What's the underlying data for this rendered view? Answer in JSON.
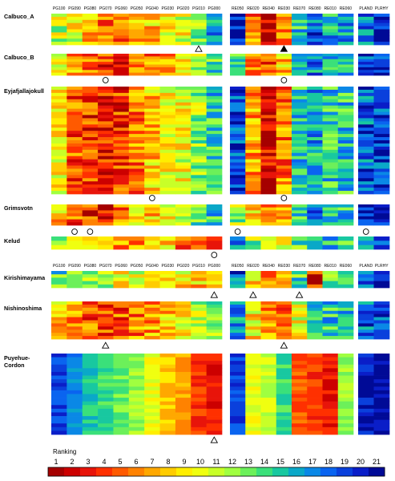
{
  "chart_data": {
    "type": "heatmap",
    "column_groups": [
      {
        "name": "PG",
        "columns": [
          "PG100",
          "PG090",
          "PG080",
          "PG070",
          "PG060",
          "PG050",
          "PG040",
          "PG030",
          "PG020",
          "PG010",
          "PG000"
        ]
      },
      {
        "name": "RE",
        "columns": [
          "RE050",
          "RE020",
          "RE040",
          "RE030",
          "RE070",
          "RE080",
          "RE010",
          "RE060"
        ]
      },
      {
        "name": "PL",
        "columns": [
          "PLAND",
          "PLRHY"
        ]
      }
    ],
    "header_rows": [
      "top",
      "middle"
    ],
    "rows": [
      {
        "label": "Calbuco_A",
        "label_lines": [
          "Calbuco_A"
        ],
        "n_rows": 10,
        "profile": [
          11,
          10,
          8,
          6,
          5,
          7,
          8,
          9,
          10,
          13,
          16,
          21,
          6,
          1,
          6,
          15,
          18,
          16,
          16,
          17,
          19
        ],
        "markers": [
          {
            "col": 9,
            "shape": "triangle-open"
          },
          {
            "col": 14,
            "shape": "triangle-filled"
          }
        ]
      },
      {
        "label": "Calbuco_B",
        "label_lines": [
          "Calbuco_B"
        ],
        "n_rows": 8,
        "profile": [
          10,
          7,
          5,
          4,
          3,
          5,
          6,
          7,
          9,
          12,
          14,
          14,
          6,
          4,
          8,
          15,
          17,
          16,
          15,
          18,
          19
        ],
        "markers": [
          {
            "col": 3,
            "shape": "circle"
          },
          {
            "col": 14,
            "shape": "circle"
          }
        ]
      },
      {
        "label": "Eyjafjallajokull",
        "label_lines": [
          "Eyjafjallajokull"
        ],
        "n_rows": 34,
        "profile": [
          9,
          5,
          4,
          3,
          4,
          6,
          8,
          9,
          10,
          12,
          15,
          19,
          7,
          2,
          6,
          15,
          16,
          15,
          15,
          18,
          19
        ],
        "markers": [
          {
            "col": 6,
            "shape": "circle"
          },
          {
            "col": 14,
            "shape": "circle"
          }
        ]
      },
      {
        "label": "Grimsvotn",
        "label_lines": [
          "Grimsvotn"
        ],
        "n_rows": 7,
        "profile": [
          8,
          5,
          4,
          3,
          6,
          8,
          8,
          10,
          11,
          13,
          15,
          12,
          8,
          5,
          7,
          14,
          17,
          16,
          15,
          19,
          20
        ],
        "markers": [
          {
            "col": 1,
            "shape": "circle"
          },
          {
            "col": 2,
            "shape": "circle"
          },
          {
            "col": 11,
            "shape": "circle"
          },
          {
            "col": 19,
            "shape": "circle"
          }
        ]
      },
      {
        "label": "Kelud",
        "label_lines": [
          "Kelud"
        ],
        "n_rows": 3,
        "profile": [
          12,
          10,
          9,
          8,
          7,
          7,
          8,
          9,
          6,
          4,
          2,
          17,
          12,
          10,
          9,
          13,
          16,
          15,
          14,
          18,
          20
        ],
        "markers": [
          {
            "col": 10,
            "shape": "circle"
          }
        ]
      },
      {
        "label": "Kirishimayama",
        "label_lines": [
          "Kirishimayama"
        ],
        "n_rows": 5,
        "profile": [
          14,
          13,
          12,
          11,
          10,
          10,
          10,
          9,
          9,
          8,
          7,
          18,
          9,
          7,
          7,
          14,
          3,
          12,
          14,
          19,
          20
        ],
        "markers": [
          {
            "col": 10,
            "shape": "triangle-open"
          },
          {
            "col": 12,
            "shape": "triangle-open"
          },
          {
            "col": 15,
            "shape": "triangle-open"
          }
        ]
      },
      {
        "label": "Nishinoshima",
        "label_lines": [
          "Nishinoshima"
        ],
        "n_rows": 12,
        "profile": [
          8,
          6,
          5,
          4,
          5,
          6,
          7,
          8,
          9,
          11,
          13,
          16,
          9,
          6,
          5,
          10,
          14,
          15,
          15,
          18,
          19
        ],
        "markers": [
          {
            "col": 3,
            "shape": "triangle-open"
          },
          {
            "col": 14,
            "shape": "triangle-open"
          }
        ]
      },
      {
        "label": "Puyehue-Cordon",
        "label_lines": [
          "Puyehue-",
          "Cordon"
        ],
        "n_rows": 22,
        "profile": [
          19,
          17,
          15,
          14,
          13,
          12,
          10,
          8,
          7,
          4,
          3,
          19,
          10,
          11,
          14,
          5,
          4,
          3,
          12,
          20,
          21
        ],
        "markers": [
          {
            "col": 10,
            "shape": "triangle-open"
          }
        ]
      }
    ],
    "legend": {
      "title": "Ranking",
      "ticks": [
        1,
        2,
        3,
        4,
        5,
        6,
        7,
        8,
        9,
        10,
        11,
        12,
        13,
        14,
        15,
        16,
        17,
        18,
        19,
        20,
        21
      ],
      "colors": [
        "#a50000",
        "#cc0000",
        "#e8140a",
        "#ff3000",
        "#ff5a00",
        "#ff8200",
        "#ffa800",
        "#ffcc00",
        "#ffee00",
        "#f0ff10",
        "#c8ff28",
        "#a0ff40",
        "#6cf05a",
        "#3ae07a",
        "#18c8a0",
        "#0aa8c8",
        "#0a88e6",
        "#0a64f0",
        "#0a40dc",
        "#0a1ec8",
        "#000a96"
      ]
    }
  }
}
